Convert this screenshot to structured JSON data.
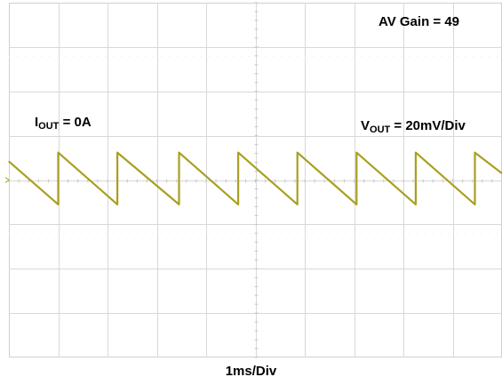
{
  "annotations": {
    "gain": "AV Gain = 49",
    "iout_main": "I",
    "iout_sub": "OUT",
    "iout_value": " = 0A",
    "vout_main": "V",
    "vout_sub": "OUT",
    "vout_value": " = 20mV/Div"
  },
  "chart_data": {
    "type": "line",
    "title": "",
    "xlabel": "1ms/Div",
    "ylabel": "",
    "x_divisions": 10,
    "y_divisions": 8,
    "x_range_div": [
      0,
      10
    ],
    "y_range_div": [
      -4,
      4
    ],
    "grid": true,
    "trace_color": "#a8a020",
    "series": [
      {
        "name": "",
        "x": [
          0,
          1.0,
          1.0,
          2.2,
          2.2,
          3.45,
          3.45,
          4.65,
          4.65,
          5.85,
          5.85,
          7.05,
          7.05,
          8.25,
          8.25,
          9.45,
          9.45,
          10.0
        ],
        "y": [
          0.42,
          -0.55,
          0.62,
          -0.55,
          0.62,
          -0.55,
          0.62,
          -0.55,
          0.62,
          -0.55,
          0.62,
          -0.55,
          0.62,
          -0.55,
          0.62,
          -0.55,
          0.62,
          0.15
        ]
      }
    ]
  }
}
